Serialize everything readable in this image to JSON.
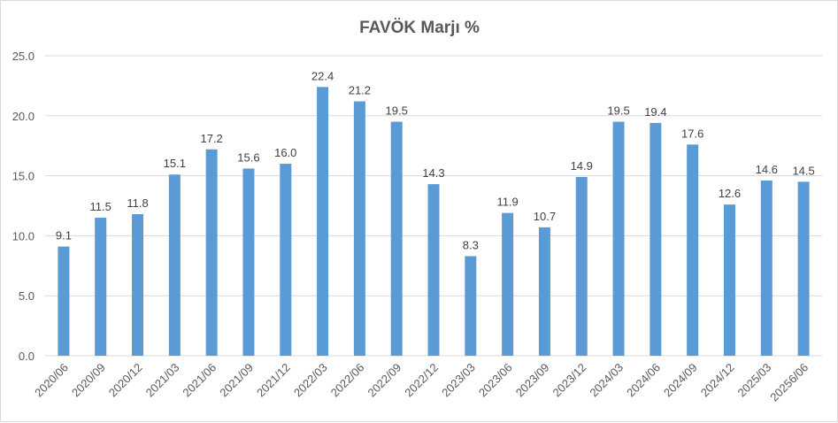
{
  "chart_data": {
    "type": "bar",
    "title": "FAVÖK Marjı %",
    "xlabel": "",
    "ylabel": "",
    "ylim": [
      0,
      25
    ],
    "yticks": [
      "0.0",
      "5.0",
      "10.0",
      "15.0",
      "20.0",
      "25.0"
    ],
    "grid": true,
    "color": "#5b9bd5",
    "categories": [
      "2020/06",
      "2020/09",
      "2020/12",
      "2021/03",
      "2021/06",
      "2021/09",
      "2021/12",
      "2022/03",
      "2022/06",
      "2022/09",
      "2022/12",
      "2023/03",
      "2023/06",
      "2023/09",
      "2023/12",
      "2024/03",
      "2024/06",
      "2024/09",
      "2024/12",
      "2025/03",
      "20256/06"
    ],
    "values": [
      9.1,
      11.5,
      11.8,
      15.1,
      17.2,
      15.6,
      16.0,
      22.4,
      21.2,
      19.5,
      14.3,
      8.3,
      11.9,
      10.7,
      14.9,
      19.5,
      19.4,
      17.6,
      12.6,
      14.6,
      14.5
    ],
    "labels": [
      "9.1",
      "11.5",
      "11.8",
      "15.1",
      "17.2",
      "15.6",
      "16.0",
      "22.4",
      "21.2",
      "19.5",
      "14.3",
      "8.3",
      "11.9",
      "10.7",
      "14.9",
      "19.5",
      "19.4",
      "17.6",
      "12.6",
      "14.6",
      "14.5"
    ]
  }
}
